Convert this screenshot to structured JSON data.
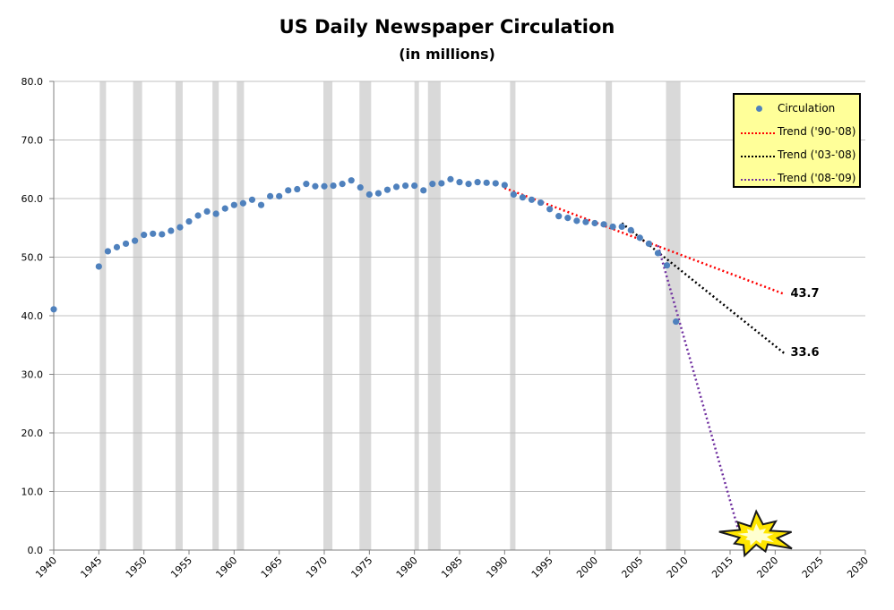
{
  "chart_data": {
    "type": "scatter",
    "title": "US Daily Newspaper Circulation",
    "subtitle": "(in millions)",
    "xlim": [
      1940,
      2030
    ],
    "ylim": [
      0,
      80
    ],
    "x_ticks": [
      "1940",
      "1945",
      "1950",
      "1955",
      "1960",
      "1965",
      "1970",
      "1975",
      "1980",
      "1985",
      "1990",
      "1995",
      "2000",
      "2005",
      "2010",
      "2015",
      "2020",
      "2025",
      "2030"
    ],
    "y_ticks": [
      "0.0",
      "10.0",
      "20.0",
      "30.0",
      "40.0",
      "50.0",
      "60.0",
      "70.0",
      "80.0"
    ],
    "grid": "horizontal",
    "legend_position": "top-right",
    "recession_bands": [
      [
        1945.1,
        1945.8
      ],
      [
        1948.8,
        1949.8
      ],
      [
        1953.5,
        1954.3
      ],
      [
        1957.6,
        1958.3
      ],
      [
        1960.3,
        1961.1
      ],
      [
        1969.9,
        1970.9
      ],
      [
        1973.9,
        1975.2
      ],
      [
        1980.0,
        1980.5
      ],
      [
        1981.5,
        1982.9
      ],
      [
        1990.6,
        1991.2
      ],
      [
        2001.2,
        2001.9
      ],
      [
        2007.9,
        2009.5
      ]
    ],
    "series": [
      {
        "name": "Circulation",
        "kind": "points",
        "color": "#4f81bd",
        "x": [
          1940,
          1945,
          1946,
          1947,
          1948,
          1949,
          1950,
          1951,
          1952,
          1953,
          1954,
          1955,
          1956,
          1957,
          1958,
          1959,
          1960,
          1961,
          1962,
          1963,
          1964,
          1965,
          1966,
          1967,
          1968,
          1969,
          1970,
          1971,
          1972,
          1973,
          1974,
          1975,
          1976,
          1977,
          1978,
          1979,
          1980,
          1981,
          1982,
          1983,
          1984,
          1985,
          1986,
          1987,
          1988,
          1989,
          1990,
          1991,
          1992,
          1993,
          1994,
          1995,
          1996,
          1997,
          1998,
          1999,
          2000,
          2001,
          2002,
          2003,
          2004,
          2005,
          2006,
          2007,
          2008,
          2009
        ],
        "y": [
          41.1,
          48.4,
          51.0,
          51.7,
          52.3,
          52.8,
          53.8,
          54.0,
          53.9,
          54.5,
          55.1,
          56.1,
          57.1,
          57.8,
          57.4,
          58.3,
          58.9,
          59.2,
          59.8,
          58.9,
          60.4,
          60.4,
          61.4,
          61.6,
          62.5,
          62.1,
          62.1,
          62.2,
          62.5,
          63.1,
          61.9,
          60.7,
          60.9,
          61.5,
          62.0,
          62.2,
          62.2,
          61.4,
          62.5,
          62.6,
          63.3,
          62.8,
          62.5,
          62.8,
          62.7,
          62.6,
          62.3,
          60.7,
          60.2,
          59.8,
          59.3,
          58.2,
          57.0,
          56.7,
          56.2,
          56.0,
          55.8,
          55.6,
          55.2,
          55.2,
          54.6,
          53.3,
          52.3,
          50.7,
          48.6,
          39.0
        ]
      },
      {
        "name": "Trend ('90-'08)",
        "kind": "trend",
        "color": "#ff0000",
        "x": [
          1990,
          2021
        ],
        "y": [
          61.8,
          43.7
        ]
      },
      {
        "name": "Trend ('03-'08)",
        "kind": "trend",
        "color": "#000000",
        "x": [
          2003,
          2021
        ],
        "y": [
          55.8,
          33.6
        ]
      },
      {
        "name": "Trend ('08-'09)",
        "kind": "trend",
        "color": "#7030a0",
        "x": [
          2007,
          2016
        ],
        "y": [
          52.0,
          3.0
        ]
      }
    ],
    "annotations": [
      {
        "text": "43.7",
        "x": 2022,
        "y": 43.7
      },
      {
        "text": "33.6",
        "x": 2022,
        "y": 33.6
      }
    ]
  },
  "colors": {
    "grid": "#c0c0c0",
    "band": "#d9d9d9",
    "legend_bg": "#ffff99",
    "burst_outer": "#ffe600",
    "burst_inner": "#ffffd0"
  },
  "icons": {
    "burst": "explosion-burst-icon"
  }
}
